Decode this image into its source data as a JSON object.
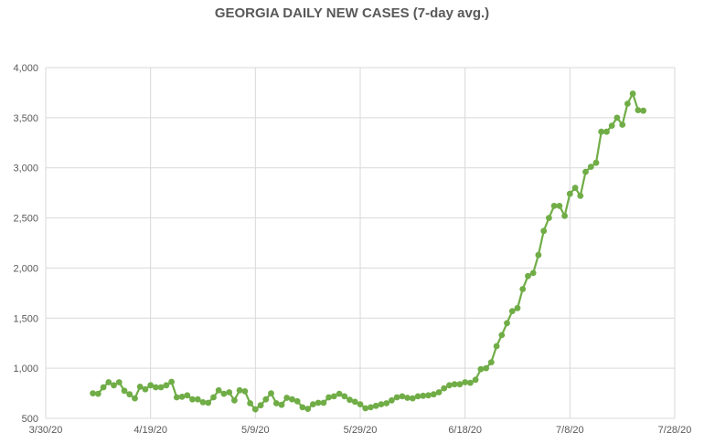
{
  "chart_data": {
    "type": "line",
    "title": "GEORGIA DAILY NEW CASES (7-day avg.)",
    "xlabel": "",
    "ylabel": "",
    "x_ticks": [
      "3/30/20",
      "4/19/20",
      "5/9/20",
      "5/29/20",
      "6/18/20",
      "7/8/20",
      "7/28/20"
    ],
    "xlim": [
      "2020-03-30",
      "2020-07-28"
    ],
    "y_ticks": [
      "500",
      "1,000",
      "1,500",
      "2,000",
      "2,500",
      "3,000",
      "3,500",
      "4,000"
    ],
    "ylim": [
      500,
      4000
    ],
    "grid": true,
    "legend": "none",
    "series": [
      {
        "color": "#70ad47",
        "marker": "circle",
        "points": [
          {
            "x": "2020-04-08",
            "y": 750
          },
          {
            "x": "2020-04-09",
            "y": 745
          },
          {
            "x": "2020-04-10",
            "y": 810
          },
          {
            "x": "2020-04-11",
            "y": 860
          },
          {
            "x": "2020-04-12",
            "y": 830
          },
          {
            "x": "2020-04-13",
            "y": 860
          },
          {
            "x": "2020-04-14",
            "y": 775
          },
          {
            "x": "2020-04-15",
            "y": 740
          },
          {
            "x": "2020-04-16",
            "y": 700
          },
          {
            "x": "2020-04-17",
            "y": 815
          },
          {
            "x": "2020-04-18",
            "y": 790
          },
          {
            "x": "2020-04-19",
            "y": 830
          },
          {
            "x": "2020-04-20",
            "y": 810
          },
          {
            "x": "2020-04-21",
            "y": 810
          },
          {
            "x": "2020-04-22",
            "y": 830
          },
          {
            "x": "2020-04-23",
            "y": 865
          },
          {
            "x": "2020-04-24",
            "y": 710
          },
          {
            "x": "2020-04-25",
            "y": 715
          },
          {
            "x": "2020-04-26",
            "y": 730
          },
          {
            "x": "2020-04-27",
            "y": 690
          },
          {
            "x": "2020-04-28",
            "y": 690
          },
          {
            "x": "2020-04-29",
            "y": 660
          },
          {
            "x": "2020-04-30",
            "y": 655
          },
          {
            "x": "2020-05-01",
            "y": 710
          },
          {
            "x": "2020-05-02",
            "y": 780
          },
          {
            "x": "2020-05-03",
            "y": 745
          },
          {
            "x": "2020-05-04",
            "y": 760
          },
          {
            "x": "2020-05-05",
            "y": 680
          },
          {
            "x": "2020-05-06",
            "y": 780
          },
          {
            "x": "2020-05-07",
            "y": 770
          },
          {
            "x": "2020-05-08",
            "y": 650
          },
          {
            "x": "2020-05-09",
            "y": 590
          },
          {
            "x": "2020-05-10",
            "y": 630
          },
          {
            "x": "2020-05-11",
            "y": 690
          },
          {
            "x": "2020-05-12",
            "y": 750
          },
          {
            "x": "2020-05-13",
            "y": 650
          },
          {
            "x": "2020-05-14",
            "y": 635
          },
          {
            "x": "2020-05-15",
            "y": 705
          },
          {
            "x": "2020-05-16",
            "y": 690
          },
          {
            "x": "2020-05-17",
            "y": 670
          },
          {
            "x": "2020-05-18",
            "y": 610
          },
          {
            "x": "2020-05-19",
            "y": 595
          },
          {
            "x": "2020-05-20",
            "y": 640
          },
          {
            "x": "2020-05-21",
            "y": 655
          },
          {
            "x": "2020-05-22",
            "y": 655
          },
          {
            "x": "2020-05-23",
            "y": 710
          },
          {
            "x": "2020-05-24",
            "y": 720
          },
          {
            "x": "2020-05-25",
            "y": 745
          },
          {
            "x": "2020-05-26",
            "y": 720
          },
          {
            "x": "2020-05-27",
            "y": 685
          },
          {
            "x": "2020-05-28",
            "y": 665
          },
          {
            "x": "2020-05-29",
            "y": 640
          },
          {
            "x": "2020-05-30",
            "y": 600
          },
          {
            "x": "2020-05-31",
            "y": 610
          },
          {
            "x": "2020-06-01",
            "y": 625
          },
          {
            "x": "2020-06-02",
            "y": 640
          },
          {
            "x": "2020-06-03",
            "y": 650
          },
          {
            "x": "2020-06-04",
            "y": 680
          },
          {
            "x": "2020-06-05",
            "y": 710
          },
          {
            "x": "2020-06-06",
            "y": 720
          },
          {
            "x": "2020-06-07",
            "y": 705
          },
          {
            "x": "2020-06-08",
            "y": 700
          },
          {
            "x": "2020-06-09",
            "y": 720
          },
          {
            "x": "2020-06-10",
            "y": 725
          },
          {
            "x": "2020-06-11",
            "y": 730
          },
          {
            "x": "2020-06-12",
            "y": 740
          },
          {
            "x": "2020-06-13",
            "y": 760
          },
          {
            "x": "2020-06-14",
            "y": 800
          },
          {
            "x": "2020-06-15",
            "y": 830
          },
          {
            "x": "2020-06-16",
            "y": 840
          },
          {
            "x": "2020-06-17",
            "y": 840
          },
          {
            "x": "2020-06-18",
            "y": 860
          },
          {
            "x": "2020-06-19",
            "y": 855
          },
          {
            "x": "2020-06-20",
            "y": 885
          },
          {
            "x": "2020-06-21",
            "y": 990
          },
          {
            "x": "2020-06-22",
            "y": 1000
          },
          {
            "x": "2020-06-23",
            "y": 1060
          },
          {
            "x": "2020-06-24",
            "y": 1220
          },
          {
            "x": "2020-06-25",
            "y": 1330
          },
          {
            "x": "2020-06-26",
            "y": 1450
          },
          {
            "x": "2020-06-27",
            "y": 1570
          },
          {
            "x": "2020-06-28",
            "y": 1600
          },
          {
            "x": "2020-06-29",
            "y": 1790
          },
          {
            "x": "2020-06-30",
            "y": 1920
          },
          {
            "x": "2020-07-01",
            "y": 1950
          },
          {
            "x": "2020-07-02",
            "y": 2130
          },
          {
            "x": "2020-07-03",
            "y": 2370
          },
          {
            "x": "2020-07-04",
            "y": 2500
          },
          {
            "x": "2020-07-05",
            "y": 2620
          },
          {
            "x": "2020-07-06",
            "y": 2620
          },
          {
            "x": "2020-07-07",
            "y": 2520
          },
          {
            "x": "2020-07-08",
            "y": 2740
          },
          {
            "x": "2020-07-09",
            "y": 2800
          },
          {
            "x": "2020-07-10",
            "y": 2720
          },
          {
            "x": "2020-07-11",
            "y": 2960
          },
          {
            "x": "2020-07-12",
            "y": 3010
          },
          {
            "x": "2020-07-13",
            "y": 3050
          },
          {
            "x": "2020-07-14",
            "y": 3360
          },
          {
            "x": "2020-07-15",
            "y": 3360
          },
          {
            "x": "2020-07-16",
            "y": 3420
          },
          {
            "x": "2020-07-17",
            "y": 3500
          },
          {
            "x": "2020-07-18",
            "y": 3430
          },
          {
            "x": "2020-07-19",
            "y": 3640
          },
          {
            "x": "2020-07-20",
            "y": 3740
          },
          {
            "x": "2020-07-21",
            "y": 3575
          },
          {
            "x": "2020-07-22",
            "y": 3570
          }
        ]
      }
    ]
  }
}
